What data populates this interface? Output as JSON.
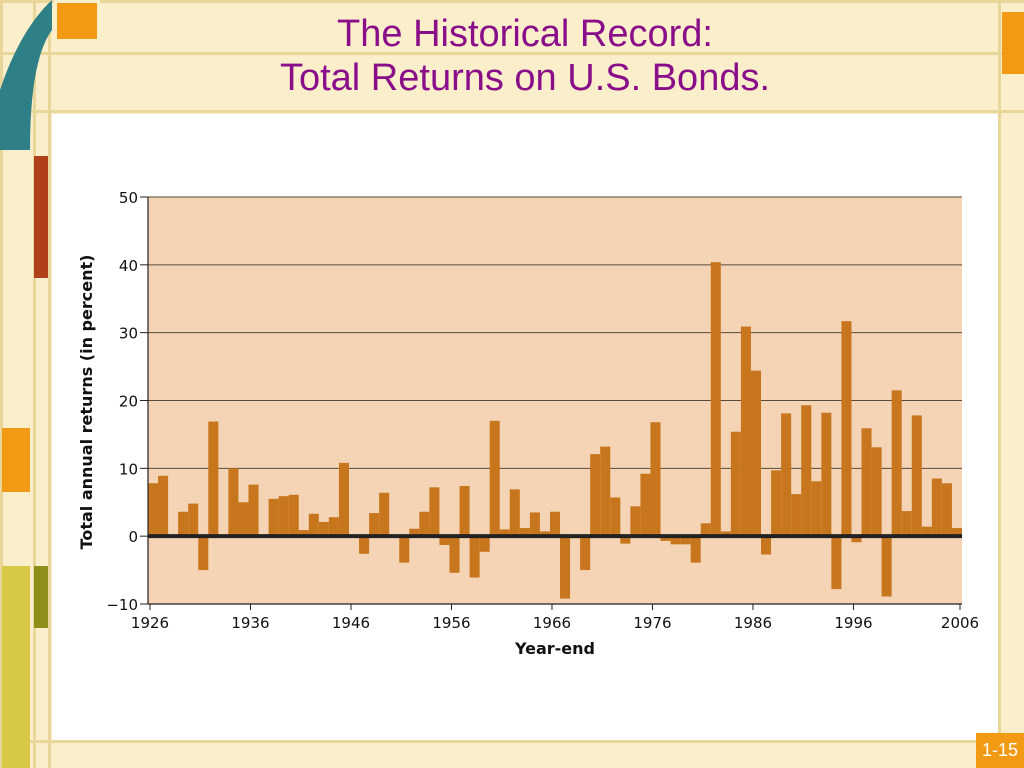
{
  "slide": {
    "title_line1": "The Historical Record:",
    "title_line2": "Total Returns on U.S. Bonds.",
    "page_number": "1-15"
  },
  "colors": {
    "title": "#8a0e8a",
    "bar": "#c8761e",
    "plot_bg": "#f4d4b4",
    "accent_orange": "#f39a14",
    "accent_teal": "#2f7f86",
    "accent_rust": "#b0401a",
    "accent_olive": "#8e8e1a"
  },
  "chart_data": {
    "type": "bar",
    "title": "",
    "xlabel": "Year-end",
    "ylabel": "Total annual returns (in percent)",
    "ylim": [
      -10,
      50
    ],
    "yticks": [
      50,
      40,
      30,
      20,
      10,
      0,
      -10
    ],
    "ytick_labels": [
      "50",
      "40",
      "30",
      "20",
      "10",
      "0",
      "−10"
    ],
    "xticks": [
      1926,
      1936,
      1946,
      1956,
      1966,
      1976,
      1986,
      1996,
      2006
    ],
    "grid": "horizontal",
    "years": [
      1926,
      1927,
      1928,
      1929,
      1930,
      1931,
      1932,
      1933,
      1934,
      1935,
      1936,
      1937,
      1938,
      1939,
      1940,
      1941,
      1942,
      1943,
      1944,
      1945,
      1946,
      1947,
      1948,
      1949,
      1950,
      1951,
      1952,
      1953,
      1954,
      1955,
      1956,
      1957,
      1958,
      1959,
      1960,
      1961,
      1962,
      1963,
      1964,
      1965,
      1966,
      1967,
      1968,
      1969,
      1970,
      1971,
      1972,
      1973,
      1974,
      1975,
      1976,
      1977,
      1978,
      1979,
      1980,
      1981,
      1982,
      1983,
      1984,
      1985,
      1986,
      1987,
      1988,
      1989,
      1990,
      1991,
      1992,
      1993,
      1994,
      1995,
      1996,
      1997,
      1998,
      1999,
      2000,
      2001,
      2002,
      2003,
      2004,
      2005,
      2006
    ],
    "values": [
      7.8,
      8.9,
      0.1,
      3.6,
      4.8,
      -5.0,
      16.9,
      0.1,
      10.0,
      5.0,
      7.6,
      0.2,
      5.5,
      5.9,
      6.1,
      0.9,
      3.3,
      2.1,
      2.8,
      10.8,
      -0.1,
      -2.6,
      3.4,
      6.4,
      -0.1,
      -3.9,
      1.1,
      3.6,
      7.2,
      -1.3,
      -5.4,
      7.4,
      -6.1,
      -2.3,
      17.0,
      1.0,
      6.9,
      1.2,
      3.5,
      0.7,
      3.6,
      -9.2,
      -0.3,
      -5.0,
      12.1,
      13.2,
      5.7,
      -1.1,
      4.4,
      9.2,
      16.8,
      -0.7,
      -1.2,
      -1.2,
      -3.9,
      1.9,
      40.4,
      0.7,
      15.4,
      30.9,
      24.4,
      -2.7,
      9.7,
      18.1,
      6.2,
      19.3,
      8.1,
      18.2,
      -7.8,
      31.7,
      -0.9,
      15.9,
      13.1,
      -8.9,
      21.5,
      3.7,
      17.8,
      1.4,
      8.5,
      7.8,
      1.2
    ]
  }
}
